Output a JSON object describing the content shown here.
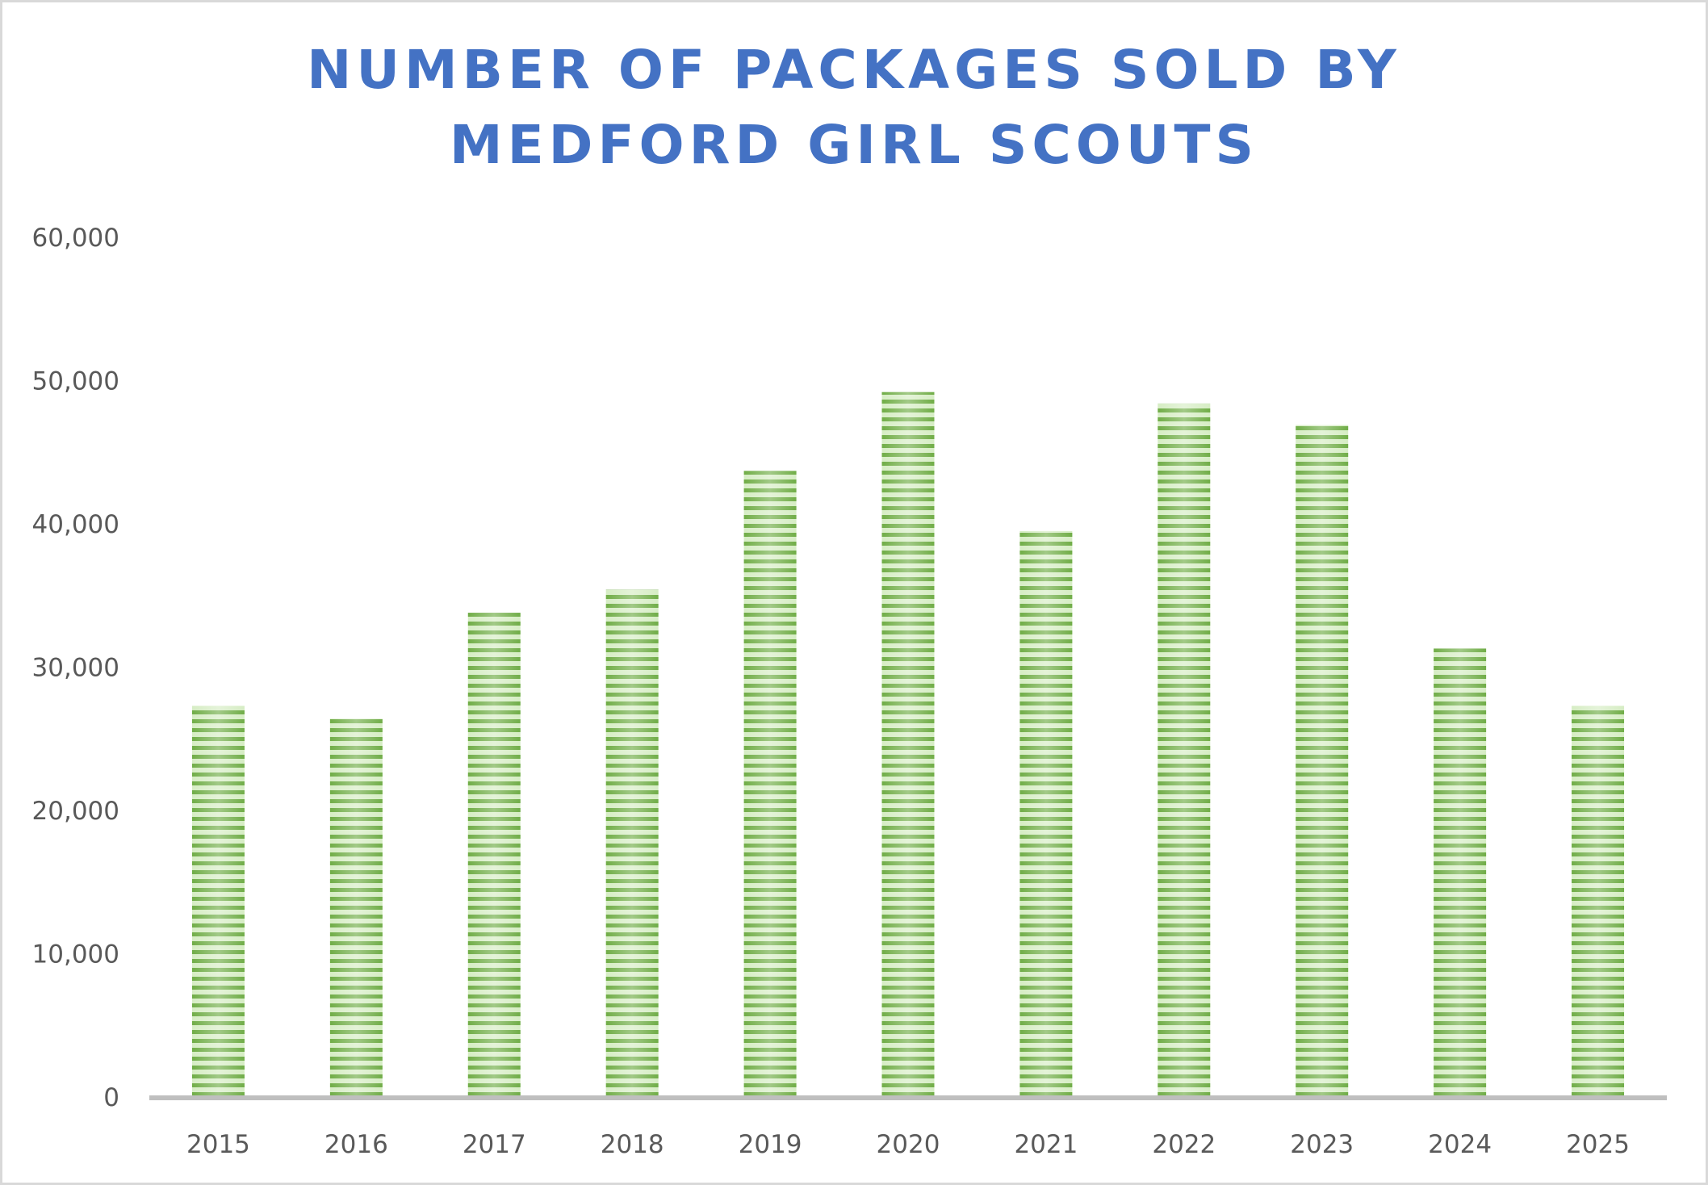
{
  "chart_data": {
    "type": "bar",
    "title_lines": [
      "NUMBER OF PACKAGES SOLD BY",
      "MEDFORD GIRL SCOUTS"
    ],
    "categories": [
      "2015",
      "2016",
      "2017",
      "2018",
      "2019",
      "2020",
      "2021",
      "2022",
      "2023",
      "2024",
      "2025"
    ],
    "values": [
      27300,
      26400,
      33800,
      35400,
      43700,
      49200,
      39500,
      48400,
      46900,
      31300,
      27300
    ],
    "ylim": [
      0,
      60000
    ],
    "yticks": [
      0,
      10000,
      20000,
      30000,
      40000,
      50000,
      60000
    ],
    "ytick_labels": [
      "0",
      "10,000",
      "20,000",
      "30,000",
      "40,000",
      "50,000",
      "60,000"
    ],
    "xlabel": "",
    "ylabel": "",
    "grid": false,
    "legend": "none",
    "colors": {
      "title": "#4472C4",
      "bar_dark": "#70AD47",
      "bar_light": "#D6EDC4",
      "axis": "#BFBFBF",
      "text": "#595959"
    }
  }
}
